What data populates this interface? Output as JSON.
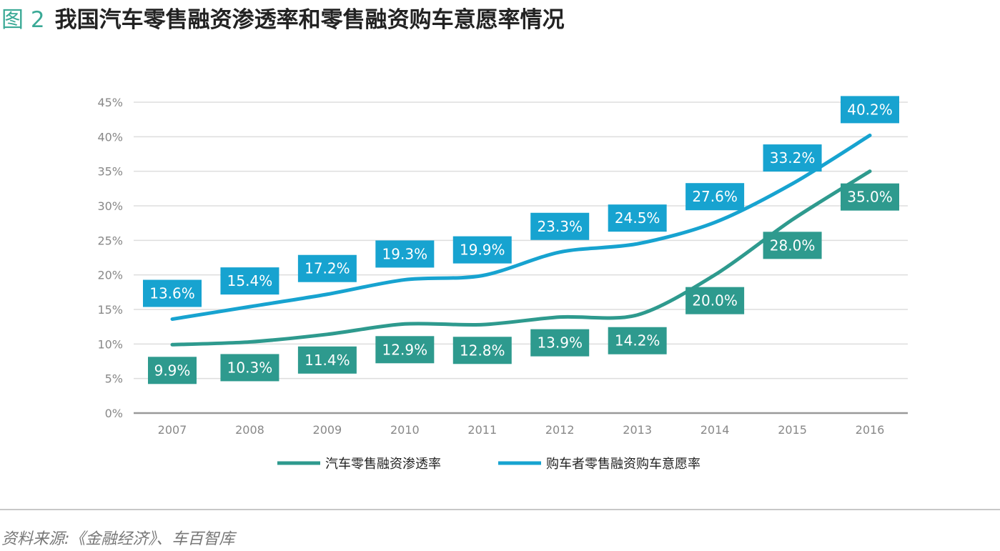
{
  "chart_data": {
    "type": "line",
    "figure_label": "图 2",
    "title": "我国汽车零售融资渗透率和零售融资购车意愿率情况",
    "categories": [
      "2007",
      "2008",
      "2009",
      "2010",
      "2011",
      "2012",
      "2013",
      "2014",
      "2015",
      "2016"
    ],
    "y_ticks": [
      "0%",
      "5%",
      "10%",
      "15%",
      "20%",
      "25%",
      "30%",
      "35%",
      "40%",
      "45%"
    ],
    "ylim": [
      0,
      45
    ],
    "grid": true,
    "legend_position": "bottom",
    "series": [
      {
        "name": "汽车零售融资渗透率",
        "color": "#2e9a8e",
        "values": [
          9.9,
          10.3,
          11.4,
          12.9,
          12.8,
          13.9,
          14.2,
          20.0,
          28.0,
          35.0
        ],
        "labels": [
          "9.9%",
          "10.3%",
          "11.4%",
          "12.9%",
          "12.8%",
          "13.9%",
          "14.2%",
          "20.0%",
          "28.0%",
          "35.0%"
        ]
      },
      {
        "name": "购车者零售融资购车意愿率",
        "color": "#17a3d0",
        "values": [
          13.6,
          15.4,
          17.2,
          19.3,
          19.9,
          23.3,
          24.5,
          27.6,
          33.2,
          40.2
        ],
        "labels": [
          "13.6%",
          "15.4%",
          "17.2%",
          "19.3%",
          "19.9%",
          "23.3%",
          "24.5%",
          "27.6%",
          "33.2%",
          "40.2%"
        ]
      }
    ]
  },
  "source": "资料来源:《金融经济》、车百智库"
}
